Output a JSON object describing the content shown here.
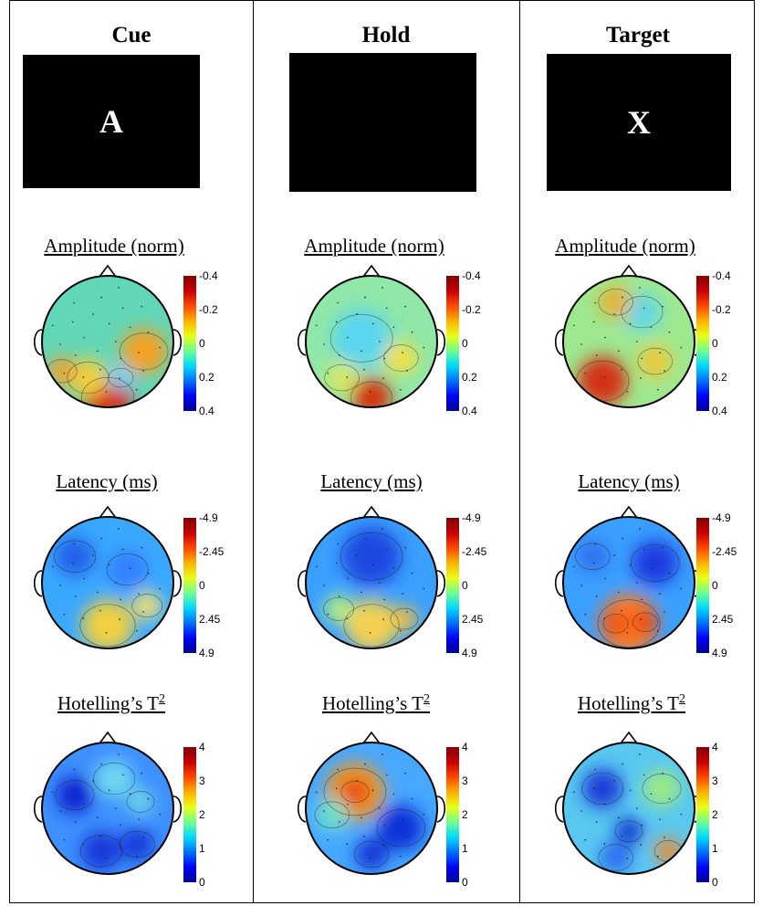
{
  "columns": [
    {
      "title": "Cue",
      "stimulus_letter": "A"
    },
    {
      "title": "Hold",
      "stimulus_letter": ""
    },
    {
      "title": "Target",
      "stimulus_letter": "X"
    }
  ],
  "rows": [
    {
      "label": "Amplitude (norm)",
      "label_sup": "",
      "ticks": [
        "-0.4",
        "-0.2",
        "0",
        "0.2",
        "0.4"
      ]
    },
    {
      "label": "Latency (ms)",
      "label_sup": "",
      "ticks": [
        "-4.9",
        "-2.45",
        "0",
        "2.45",
        "4.9"
      ]
    },
    {
      "label": "Hotelling’s T",
      "label_sup": "2",
      "ticks": [
        "4",
        "3",
        "2",
        "1",
        "0"
      ]
    }
  ],
  "colormap": "jet",
  "colors": {
    "stimulus_background": "#000000",
    "stimulus_text": "#ffffff"
  }
}
